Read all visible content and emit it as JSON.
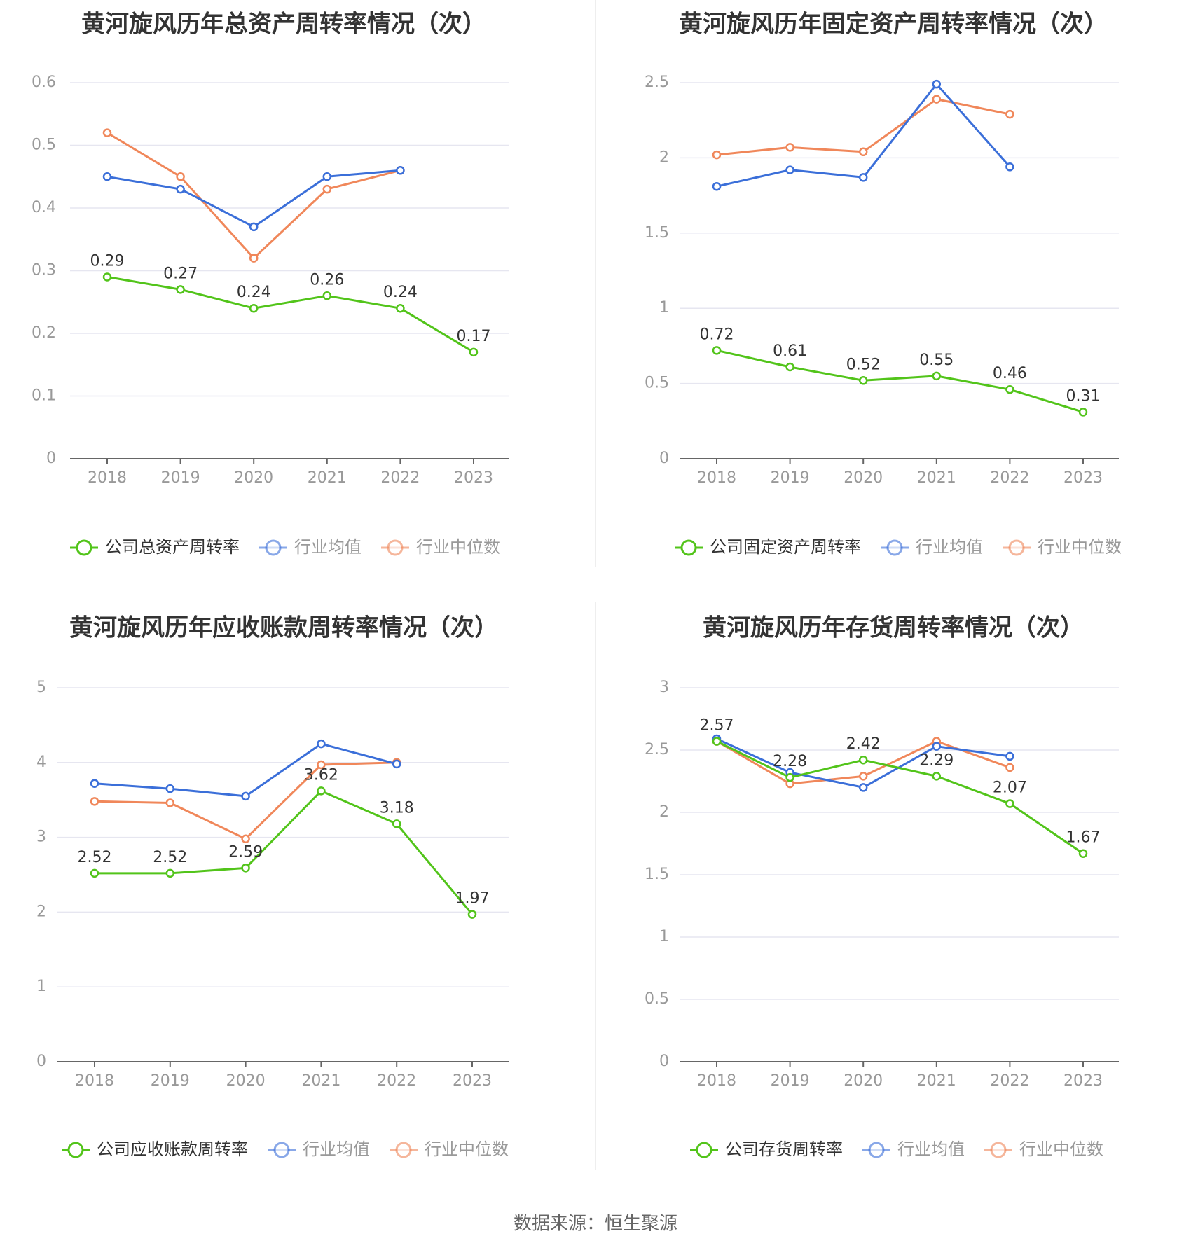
{
  "footer": {
    "source": "数据来源：恒生聚源"
  },
  "colors": {
    "company": "#52c41a",
    "avg": "#3b6fd9",
    "median": "#f0875a",
    "grid": "#e6e6f0",
    "axis": "#666666"
  },
  "chart_data": [
    {
      "type": "line",
      "title": "黄河旋风历年总资产周转率情况（次）",
      "categories": [
        "2018",
        "2019",
        "2020",
        "2021",
        "2022",
        "2023"
      ],
      "ylim": [
        0,
        0.6
      ],
      "yticks": [
        "0",
        "0.1",
        "0.2",
        "0.3",
        "0.4",
        "0.5",
        "0.6"
      ],
      "yticks_values": [
        0,
        0.1,
        0.2,
        0.3,
        0.4,
        0.5,
        0.6
      ],
      "legend_position": "bottom",
      "series": [
        {
          "name": "公司总资产周转率",
          "role": "company",
          "values": [
            0.29,
            0.27,
            0.24,
            0.26,
            0.24,
            0.17
          ],
          "labels": [
            "0.29",
            "0.27",
            "0.24",
            "0.26",
            "0.24",
            "0.17"
          ]
        },
        {
          "name": "行业均值",
          "role": "avg",
          "values": [
            0.45,
            0.43,
            0.37,
            0.45,
            0.46,
            null
          ]
        },
        {
          "name": "行业中位数",
          "role": "median",
          "values": [
            0.52,
            0.45,
            0.32,
            0.43,
            0.46,
            null
          ]
        }
      ]
    },
    {
      "type": "line",
      "title": "黄河旋风历年固定资产周转率情况（次）",
      "categories": [
        "2018",
        "2019",
        "2020",
        "2021",
        "2022",
        "2023"
      ],
      "ylim": [
        0,
        2.5
      ],
      "yticks": [
        "0",
        "0.5",
        "1",
        "1.5",
        "2",
        "2.5"
      ],
      "yticks_values": [
        0,
        0.5,
        1,
        1.5,
        2,
        2.5
      ],
      "legend_position": "bottom",
      "series": [
        {
          "name": "公司固定资产周转率",
          "role": "company",
          "values": [
            0.72,
            0.61,
            0.52,
            0.55,
            0.46,
            0.31
          ],
          "labels": [
            "0.72",
            "0.61",
            "0.52",
            "0.55",
            "0.46",
            "0.31"
          ]
        },
        {
          "name": "行业均值",
          "role": "avg",
          "values": [
            1.81,
            1.92,
            1.87,
            2.49,
            1.94,
            null
          ]
        },
        {
          "name": "行业中位数",
          "role": "median",
          "values": [
            2.02,
            2.07,
            2.04,
            2.39,
            2.29,
            null
          ]
        }
      ]
    },
    {
      "type": "line",
      "title": "黄河旋风历年应收账款周转率情况（次）",
      "categories": [
        "2018",
        "2019",
        "2020",
        "2021",
        "2022",
        "2023"
      ],
      "ylim": [
        0,
        5
      ],
      "yticks": [
        "0",
        "1",
        "2",
        "3",
        "4",
        "5"
      ],
      "yticks_values": [
        0,
        1,
        2,
        3,
        4,
        5
      ],
      "legend_position": "bottom",
      "series": [
        {
          "name": "公司应收账款周转率",
          "role": "company",
          "values": [
            2.52,
            2.52,
            2.59,
            3.62,
            3.18,
            1.97
          ],
          "labels": [
            "2.52",
            "2.52",
            "2.59",
            "3.62",
            "3.18",
            "1.97"
          ]
        },
        {
          "name": "行业均值",
          "role": "avg",
          "values": [
            3.72,
            3.65,
            3.55,
            4.25,
            3.98,
            null
          ]
        },
        {
          "name": "行业中位数",
          "role": "median",
          "values": [
            3.48,
            3.46,
            2.98,
            3.97,
            4.0,
            null
          ]
        }
      ]
    },
    {
      "type": "line",
      "title": "黄河旋风历年存货周转率情况（次）",
      "categories": [
        "2018",
        "2019",
        "2020",
        "2021",
        "2022",
        "2023"
      ],
      "ylim": [
        0,
        3
      ],
      "yticks": [
        "0",
        "0.5",
        "1",
        "1.5",
        "2",
        "2.5",
        "3"
      ],
      "yticks_values": [
        0,
        0.5,
        1,
        1.5,
        2,
        2.5,
        3
      ],
      "legend_position": "bottom",
      "series": [
        {
          "name": "公司存货周转率",
          "role": "company",
          "values": [
            2.57,
            2.28,
            2.42,
            2.29,
            2.07,
            1.67
          ],
          "labels": [
            "2.57",
            "2.28",
            "2.42",
            "2.29",
            "2.07",
            "1.67"
          ]
        },
        {
          "name": "行业均值",
          "role": "avg",
          "values": [
            2.59,
            2.32,
            2.2,
            2.53,
            2.45,
            null
          ]
        },
        {
          "name": "行业中位数",
          "role": "median",
          "values": [
            2.57,
            2.23,
            2.29,
            2.57,
            2.36,
            null
          ]
        }
      ]
    }
  ]
}
